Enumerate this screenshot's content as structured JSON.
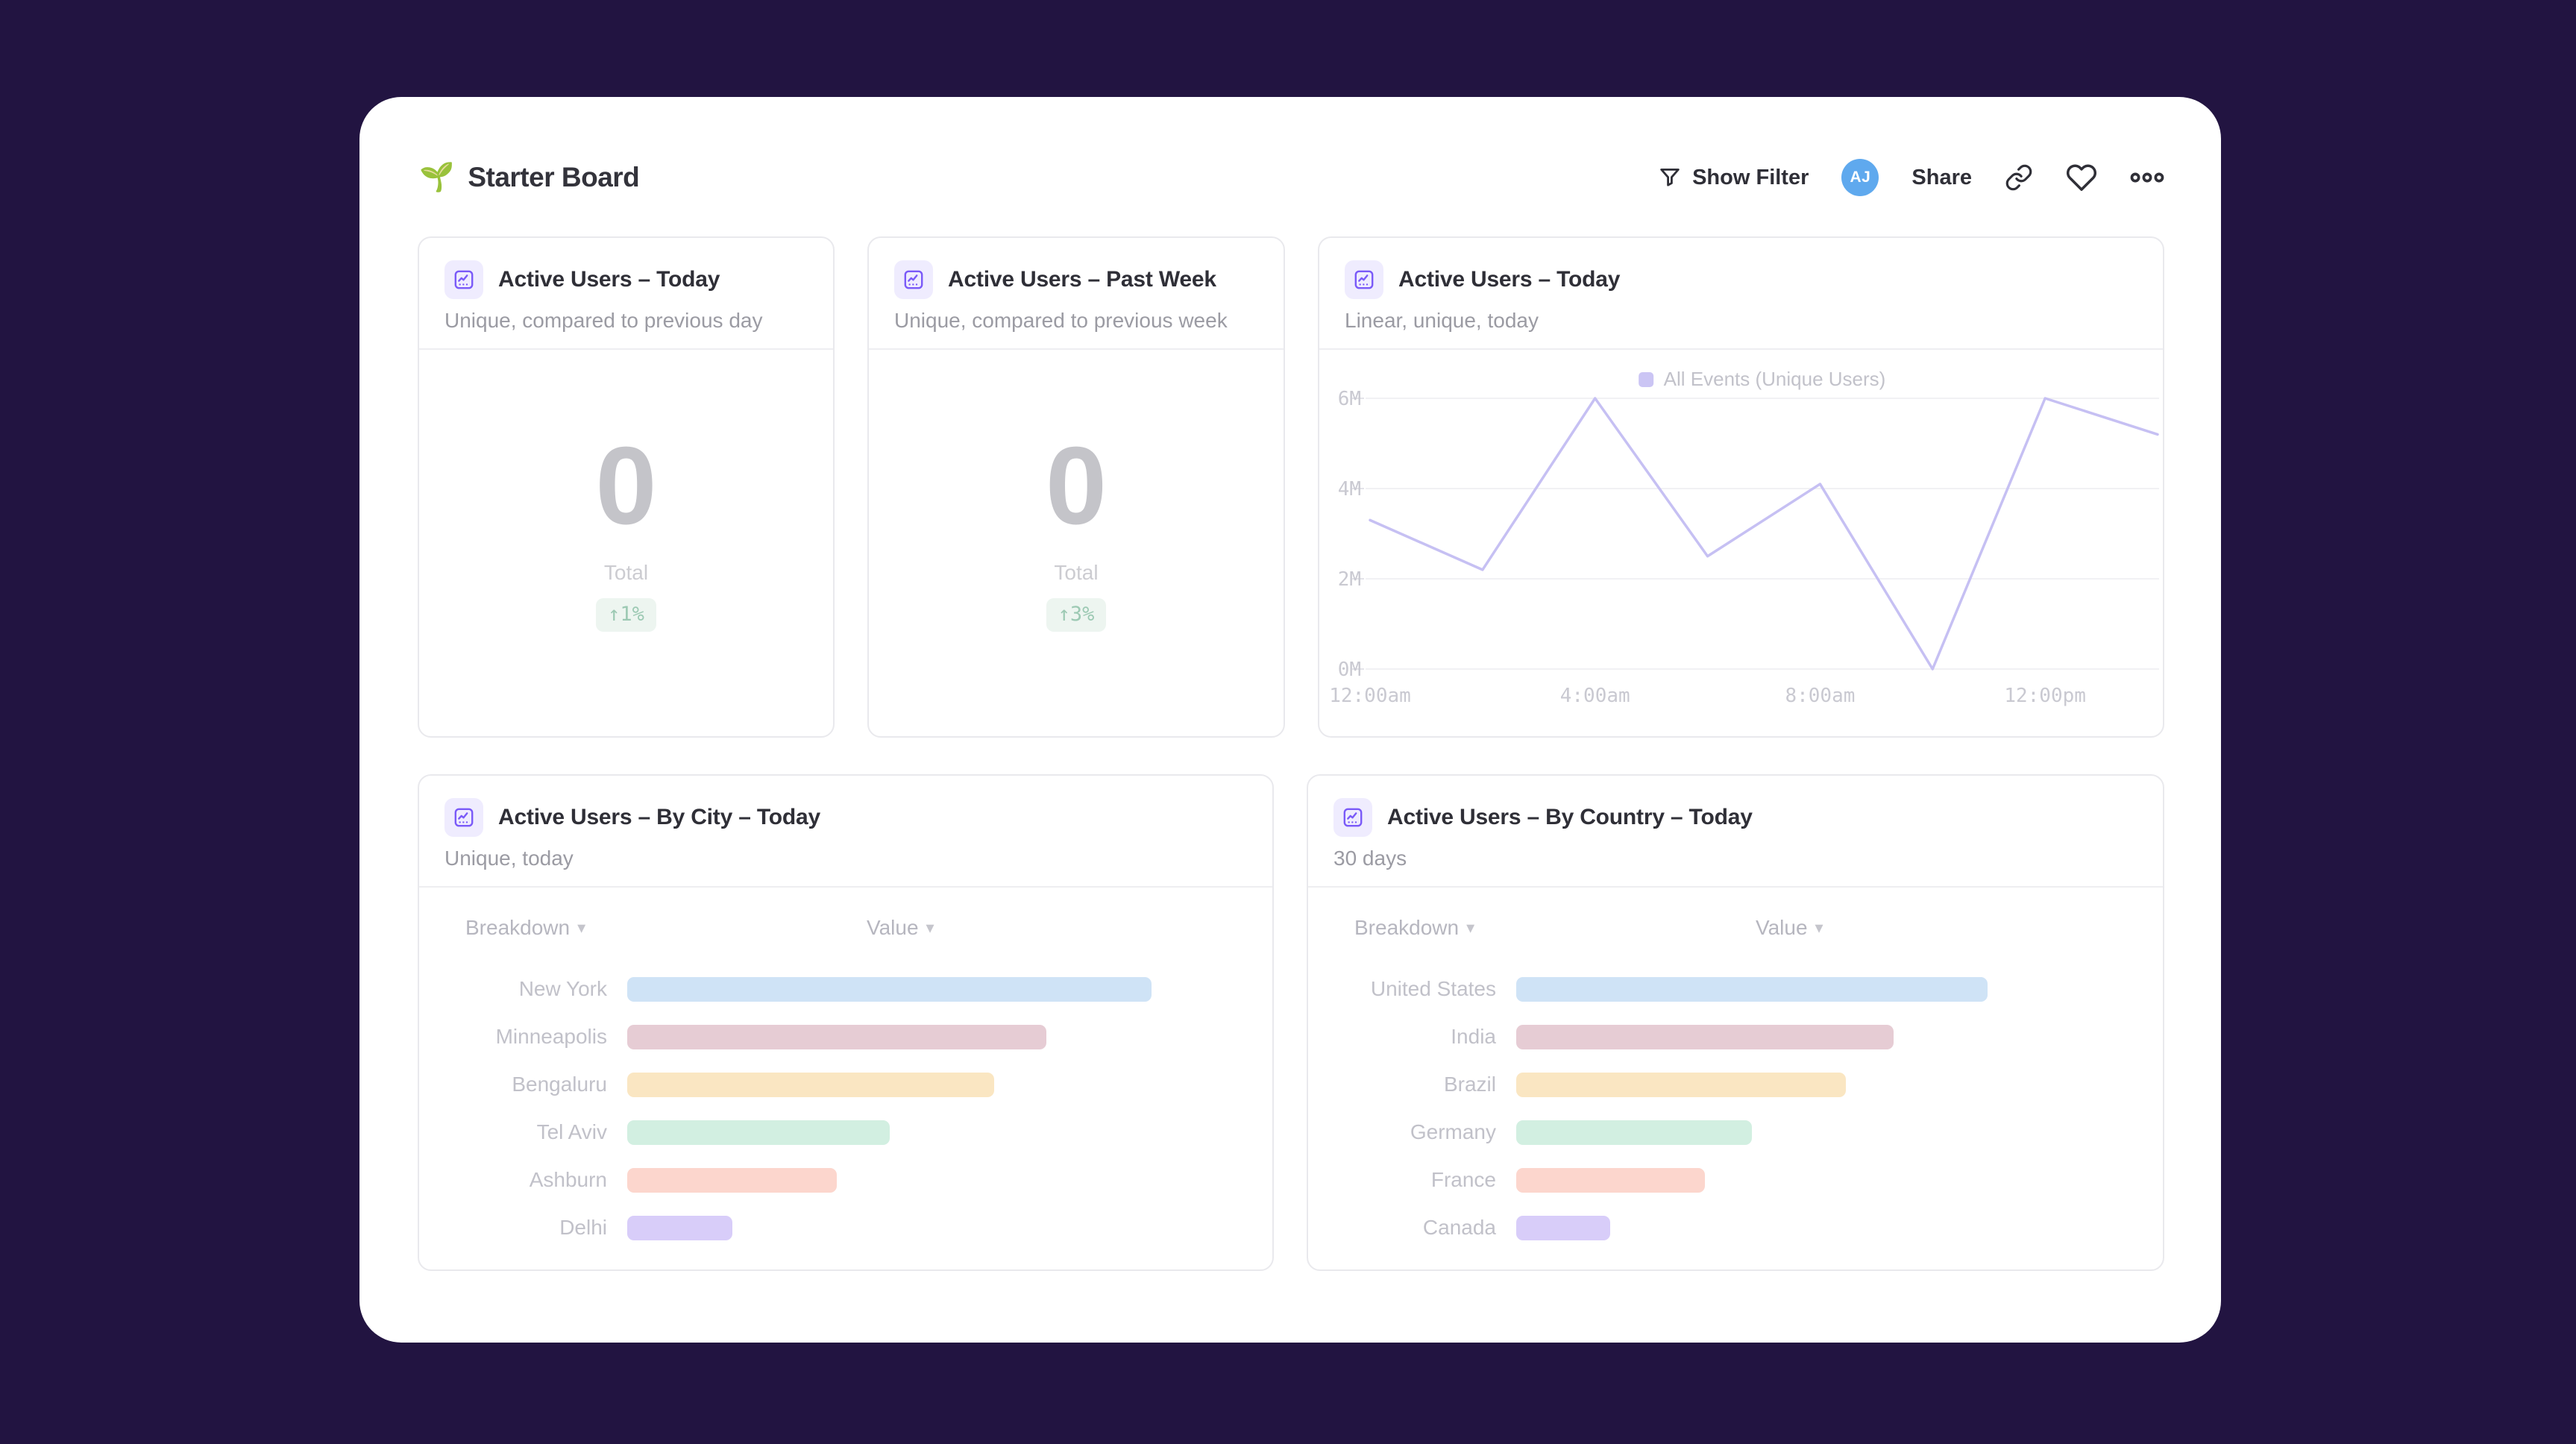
{
  "header": {
    "title": "Starter Board",
    "title_emoji": "🌱",
    "show_filter_label": "Show Filter",
    "avatar_initials": "AJ",
    "share_label": "Share"
  },
  "cards": {
    "today": {
      "title": "Active Users – Today",
      "subtitle": "Unique, compared to previous day",
      "value": "0",
      "value_label": "Total",
      "change_badge": "↑1%"
    },
    "past_week": {
      "title": "Active Users – Past Week",
      "subtitle": "Unique, compared to previous week",
      "value": "0",
      "value_label": "Total",
      "change_badge": "↑3%"
    },
    "today_linear": {
      "title": "Active Users – Today",
      "subtitle": "Linear, unique, today",
      "legend": "All Events (Unique Users)"
    },
    "by_city": {
      "title": "Active Users – By City – Today",
      "subtitle": "Unique, today",
      "breakdown_header": "Breakdown",
      "value_header": "Value"
    },
    "by_country": {
      "title": "Active Users – By Country – Today",
      "subtitle": "30 days",
      "breakdown_header": "Breakdown",
      "value_header": "Value"
    }
  },
  "colors": {
    "page_background": "#221441",
    "accent_purple": "#7a5af8",
    "tile_icon_background": "#efecfe",
    "avatar_blue": "#5fa9ee",
    "badge_green": "#9cc9b3",
    "badge_background": "#edf5f0",
    "line_color": "#c6c0f3",
    "axis_text": "#c9c9d1",
    "gridline": "#f1f1f4"
  },
  "chart_data": [
    {
      "type": "line",
      "title": "Active Users – Today",
      "subtitle": "Linear, unique, today",
      "legend_position": "top",
      "grid": "horizontal",
      "ylim": [
        0,
        6
      ],
      "unit": "millions",
      "yticks": [
        "0M",
        "2M",
        "4M",
        "6M"
      ],
      "x": [
        "12:00am",
        "2:00am",
        "4:00am",
        "6:00am",
        "8:00am",
        "10:00am",
        "12:00pm",
        "2:00pm"
      ],
      "xticks_shown": [
        "12:00am",
        "4:00am",
        "8:00am",
        "12:00pm"
      ],
      "series": [
        {
          "name": "All Events (Unique Users)",
          "values_millions": [
            3.3,
            2.2,
            6.0,
            2.5,
            4.1,
            0,
            6.0,
            5.2
          ]
        }
      ],
      "line_color": "#c6c0f3"
    },
    {
      "type": "bar",
      "orientation": "horizontal",
      "title": "Active Users – By City – Today",
      "subtitle": "Unique, today",
      "categories": [
        "New York",
        "Minneapolis",
        "Bengaluru",
        "Tel Aviv",
        "Ashburn",
        "Delhi"
      ],
      "values_relative_pct": [
        100,
        80,
        70,
        50,
        40,
        20
      ],
      "bar_colors": [
        "#cfe3f6",
        "#e6ccd4",
        "#fae6c2",
        "#d2efe1",
        "#fcd6cd",
        "#d8cdf9"
      ]
    },
    {
      "type": "bar",
      "orientation": "horizontal",
      "title": "Active Users – By Country – Today",
      "subtitle": "30 days",
      "categories": [
        "United States",
        "India",
        "Brazil",
        "Germany",
        "France",
        "Canada"
      ],
      "values_relative_pct": [
        100,
        80,
        70,
        50,
        40,
        20
      ],
      "bar_colors": [
        "#cfe3f6",
        "#e6ccd4",
        "#fae6c2",
        "#d2efe1",
        "#fcd6cd",
        "#d8cdf9"
      ]
    }
  ]
}
